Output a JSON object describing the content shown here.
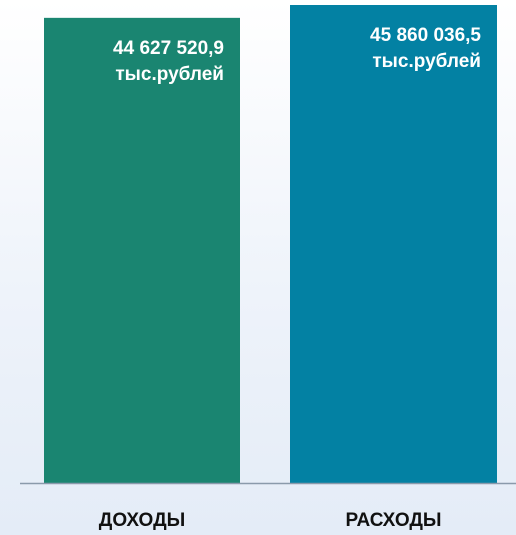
{
  "chart_data": {
    "type": "bar",
    "categories": [
      "ДОХОДЫ",
      "РАСХОДЫ"
    ],
    "values": [
      44627520.9,
      45860036.5
    ],
    "value_labels": [
      "44 627 520,9 тыс.рублей",
      "45 860 036,5 тыс.рублей"
    ],
    "colors": [
      "#1a8571",
      "#0381a3"
    ]
  }
}
